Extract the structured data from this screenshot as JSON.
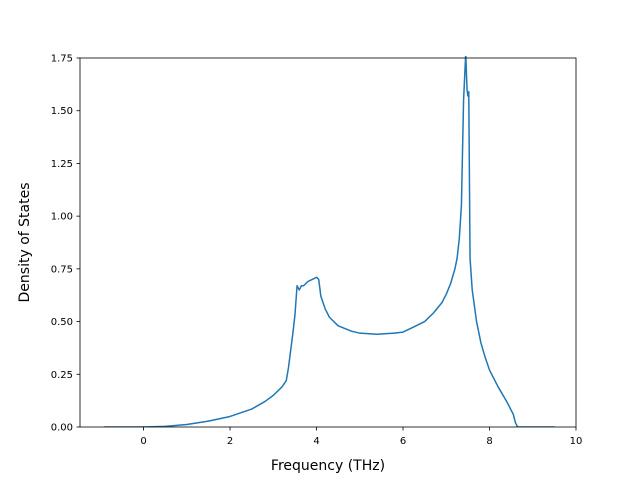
{
  "chart_data": {
    "type": "line",
    "title": "",
    "xlabel": "Frequency (THz)",
    "ylabel": "Density of States",
    "xlim": [
      -1.47,
      10.0
    ],
    "ylim": [
      0.0,
      1.75
    ],
    "xticks": [
      0,
      2,
      4,
      6,
      8,
      10
    ],
    "xtick_labels": [
      "0",
      "2",
      "4",
      "6",
      "8",
      "10"
    ],
    "yticks": [
      0.0,
      0.25,
      0.5,
      0.75,
      1.0,
      1.25,
      1.5,
      1.75
    ],
    "ytick_labels": [
      "0.00",
      "0.25",
      "0.50",
      "0.75",
      "1.00",
      "1.25",
      "1.50",
      "1.75"
    ],
    "grid": false,
    "series": [
      {
        "color": "#1f77b4",
        "x": [
          -0.9,
          -0.5,
          0.0,
          0.5,
          1.0,
          1.5,
          2.0,
          2.5,
          2.8,
          3.0,
          3.2,
          3.3,
          3.35,
          3.4,
          3.45,
          3.5,
          3.55,
          3.6,
          3.65,
          3.7,
          3.8,
          3.9,
          4.0,
          4.05,
          4.1,
          4.2,
          4.3,
          4.5,
          4.8,
          5.0,
          5.4,
          5.8,
          6.0,
          6.2,
          6.5,
          6.7,
          6.9,
          7.0,
          7.1,
          7.2,
          7.25,
          7.3,
          7.35,
          7.4,
          7.45,
          7.48,
          7.5,
          7.52,
          7.55,
          7.6,
          7.7,
          7.8,
          7.9,
          8.0,
          8.2,
          8.4,
          8.55,
          8.6,
          8.65,
          9.0,
          9.5
        ],
        "y": [
          0.0,
          0.0,
          0.0,
          0.003,
          0.012,
          0.028,
          0.05,
          0.085,
          0.12,
          0.15,
          0.19,
          0.22,
          0.28,
          0.36,
          0.44,
          0.53,
          0.67,
          0.65,
          0.67,
          0.67,
          0.69,
          0.7,
          0.71,
          0.7,
          0.62,
          0.56,
          0.52,
          0.48,
          0.455,
          0.445,
          0.44,
          0.445,
          0.45,
          0.47,
          0.5,
          0.54,
          0.59,
          0.63,
          0.68,
          0.75,
          0.8,
          0.89,
          1.05,
          1.55,
          1.77,
          1.6,
          1.57,
          1.59,
          0.8,
          0.65,
          0.5,
          0.4,
          0.33,
          0.27,
          0.19,
          0.12,
          0.06,
          0.02,
          0.0,
          0.0,
          0.0
        ]
      }
    ]
  }
}
